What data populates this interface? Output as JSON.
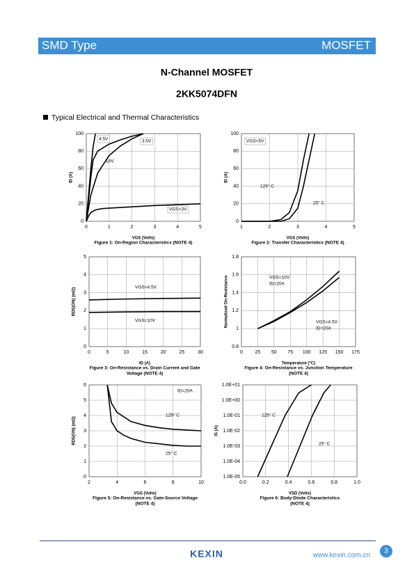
{
  "header": {
    "left": "SMD Type",
    "right": "MOSFET"
  },
  "title": "N-Channel MOSFET",
  "part_number": "2KK5074DFN",
  "section": "Typical Electrical and Thermal Characteristics",
  "footer": {
    "logo": "KEXIN",
    "url": "www.kexin.com.cn",
    "page": "3"
  },
  "chart_data": [
    {
      "type": "line",
      "x_label": "VGS (Volts)",
      "y_label": "ID (A)",
      "caption": [
        "Figure 1: On-Region Characteristics (NOTE 4)"
      ],
      "xlim": [
        0,
        5
      ],
      "xticks": [
        0,
        1,
        2,
        3,
        4,
        5
      ],
      "ylim": [
        0,
        100
      ],
      "yticks": [
        0,
        20,
        40,
        60,
        80,
        100
      ],
      "grid": true,
      "series": [
        {
          "name": "4.5V",
          "color": "#000000",
          "x": [
            0,
            0.1,
            0.2,
            0.3,
            0.5,
            1,
            1.5,
            2,
            2.5
          ],
          "values": [
            0,
            25,
            50,
            70,
            80,
            88,
            93,
            97,
            100
          ]
        },
        {
          "name": "10V",
          "color": "#000000",
          "x": [
            0,
            0.1,
            0.2,
            0.3,
            0.4
          ],
          "values": [
            0,
            30,
            60,
            85,
            100
          ]
        },
        {
          "name": "3.5V",
          "color": "#000000",
          "x": [
            0,
            0.2,
            0.5,
            1,
            1.5,
            2,
            2.5
          ],
          "values": [
            0,
            30,
            55,
            75,
            86,
            94,
            100
          ]
        },
        {
          "name": "VGS=3V",
          "color": "#000000",
          "x": [
            0,
            0.1,
            0.2,
            0.4,
            0.7,
            1,
            2,
            3,
            4,
            5
          ],
          "values": [
            0,
            6,
            10,
            13,
            14.5,
            15,
            16.5,
            18,
            19,
            20
          ]
        }
      ],
      "annotations": []
    },
    {
      "type": "line",
      "x_label": "VGS (Volts)",
      "y_label": "ID (A)",
      "caption": [
        "Figure 2: Transfer Characteristics (NOTE 4)"
      ],
      "xlim": [
        1,
        5
      ],
      "xticks": [
        1,
        2,
        3,
        4,
        5
      ],
      "ylim": [
        0,
        100
      ],
      "yticks": [
        0,
        20,
        40,
        60,
        80,
        100
      ],
      "grid": true,
      "series": [
        {
          "name": "125° C",
          "color": "#000000",
          "x": [
            1,
            2,
            2.4,
            2.7,
            3,
            3.2,
            3.4
          ],
          "values": [
            0,
            0,
            2,
            10,
            35,
            70,
            100
          ]
        },
        {
          "name": "25° C",
          "color": "#000000",
          "x": [
            1,
            2.4,
            2.7,
            3,
            3.2,
            3.4,
            3.6
          ],
          "values": [
            0,
            0,
            3,
            15,
            40,
            70,
            100
          ]
        }
      ],
      "annotations": [
        "VGS=5V"
      ]
    },
    {
      "type": "line",
      "x_label": "ID (A)",
      "y_label": "RDS(ON) (mΩ)",
      "caption": [
        "Figure 3: On-Resistance vs. Drain Current and Gate",
        "Voltage (NOTE 4)"
      ],
      "xlim": [
        0,
        30
      ],
      "xticks": [
        0,
        5,
        10,
        15,
        20,
        25,
        30
      ],
      "ylim": [
        0,
        5
      ],
      "yticks": [
        0,
        1,
        2,
        3,
        4,
        5
      ],
      "grid": true,
      "series": [
        {
          "name": "VGS=4.5V",
          "color": "#000000",
          "x": [
            0,
            10,
            20,
            30
          ],
          "values": [
            2.6,
            2.65,
            2.68,
            2.7
          ]
        },
        {
          "name": "VGS=10V",
          "color": "#000000",
          "x": [
            0,
            10,
            20,
            30
          ],
          "values": [
            1.9,
            1.93,
            1.95,
            1.95
          ]
        }
      ],
      "annotations": []
    },
    {
      "type": "line",
      "x_label": "Temperature (°C)",
      "y_label": "Normalized On-Resistance",
      "caption": [
        "Figure 4: On-Resistance vs. Junction Temperature",
        "(NOTE 4)"
      ],
      "xlim": [
        0,
        175
      ],
      "xticks": [
        0,
        25,
        50,
        75,
        100,
        125,
        150,
        175
      ],
      "ylim": [
        0.8,
        1.8
      ],
      "yticks": [
        0.8,
        1,
        1.2,
        1.4,
        1.6,
        1.8
      ],
      "grid": true,
      "series": [
        {
          "name": "VGS=10V",
          "color": "#000000",
          "x": [
            25,
            50,
            75,
            100,
            125,
            150
          ],
          "values": [
            1,
            1.09,
            1.19,
            1.32,
            1.47,
            1.64
          ]
        },
        {
          "name": "VGS=4.5V",
          "color": "#000000",
          "x": [
            25,
            50,
            75,
            100,
            125,
            150
          ],
          "values": [
            1,
            1.08,
            1.18,
            1.29,
            1.42,
            1.57
          ]
        }
      ],
      "annotations": [
        "ID=20A",
        "ID=20A"
      ]
    },
    {
      "type": "line",
      "x_label": "VGS (Volts)",
      "y_label": "RDS(ON) (mΩ)",
      "caption": [
        "Figure 5: On-Resistance vs. Gate-Source Voltage",
        "(NOTE 4)"
      ],
      "xlim": [
        2,
        10
      ],
      "xticks": [
        2,
        4,
        6,
        8,
        10
      ],
      "ylim": [
        0,
        6
      ],
      "yticks": [
        0,
        1,
        2,
        3,
        4,
        5,
        6
      ],
      "grid": true,
      "series": [
        {
          "name": "125° C",
          "color": "#000000",
          "x": [
            3.3,
            3.6,
            4,
            4.5,
            5,
            6,
            7,
            8,
            9,
            10
          ],
          "values": [
            6,
            4.8,
            4.2,
            3.9,
            3.6,
            3.35,
            3.2,
            3.1,
            3.05,
            3.0
          ]
        },
        {
          "name": "25° C",
          "color": "#000000",
          "x": [
            3.3,
            3.6,
            4,
            4.5,
            5,
            6,
            7,
            8,
            9,
            10
          ],
          "values": [
            6,
            3.6,
            3.0,
            2.7,
            2.5,
            2.25,
            2.15,
            2.05,
            2.0,
            2.0
          ]
        }
      ],
      "annotations": [
        "ID=20A"
      ]
    },
    {
      "type": "line",
      "x_label": "VSD (Volts)",
      "y_label": "IS (A)",
      "caption": [
        "Figure 6: Body-Diode Characteristics",
        "(NOTE 4)"
      ],
      "xlim": [
        0,
        1
      ],
      "xticks": [
        {
          "value": 0,
          "label": "0.0"
        },
        0.2,
        0.4,
        0.6,
        0.8,
        {
          "value": 1,
          "label": "1.0"
        }
      ],
      "ylim": [
        1e-05,
        10
      ],
      "log_y": true,
      "yticks": [
        {
          "value": 1e-05,
          "label": "1.0E-05"
        },
        {
          "value": 0.0001,
          "label": "1.0E-04"
        },
        {
          "value": 0.001,
          "label": "1.0E-03"
        },
        {
          "value": 0.01,
          "label": "1.0E-02"
        },
        {
          "value": 0.1,
          "label": "1.0E-01"
        },
        {
          "value": 1,
          "label": "1.0E+00"
        },
        {
          "value": 10,
          "label": "1.0E+01"
        }
      ],
      "grid": true,
      "series": [
        {
          "name": "125° C",
          "color": "#000000",
          "x": [
            0.13,
            0.25,
            0.37,
            0.49,
            0.6
          ],
          "values": [
            1e-05,
            0.001,
            0.1,
            3,
            10
          ]
        },
        {
          "name": "25° C",
          "color": "#000000",
          "x": [
            0.39,
            0.5,
            0.61,
            0.71,
            0.77
          ],
          "values": [
            1e-05,
            0.001,
            0.1,
            3,
            10
          ]
        }
      ],
      "annotations": []
    }
  ]
}
